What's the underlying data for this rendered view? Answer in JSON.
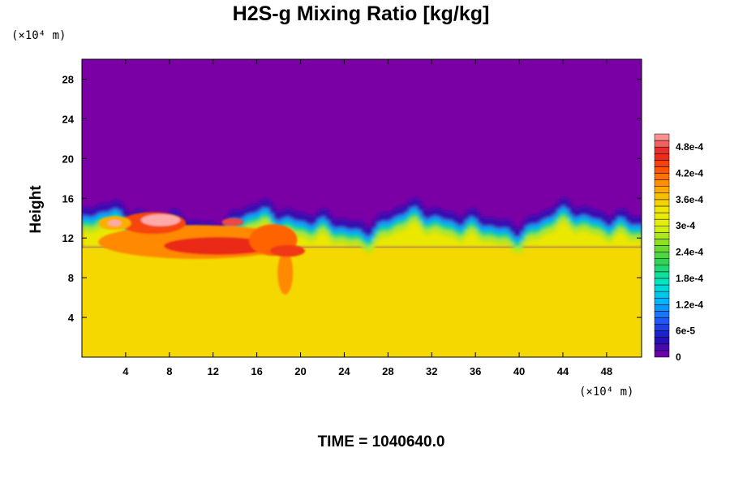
{
  "chart_data": {
    "type": "heatmap",
    "title": "H2S-g Mixing Ratio [kg/kg]",
    "ylabel": "Height",
    "x_unit": "(×10⁴ m)",
    "y_unit": "(×10⁴ m)",
    "xlim": [
      0,
      51.2
    ],
    "ylim": [
      0,
      30
    ],
    "x_ticks": [
      4,
      8,
      12,
      16,
      20,
      24,
      28,
      32,
      36,
      40,
      44,
      48
    ],
    "y_ticks": [
      4,
      8,
      12,
      16,
      20,
      24,
      28
    ],
    "x_tick_labels": [
      "4",
      "8",
      "12",
      "16",
      "20",
      "24",
      "28",
      "32",
      "36",
      "40",
      "44",
      "48"
    ],
    "y_tick_labels": [
      "4",
      "8",
      "12",
      "16",
      "20",
      "24",
      "28"
    ],
    "colorbar": {
      "min": 0,
      "max": 0.00051,
      "labels": [
        "0",
        "6e-5",
        "1.2e-4",
        "1.8e-4",
        "2.4e-4",
        "3e-4",
        "3.6e-4",
        "4.2e-4",
        "4.8e-4"
      ],
      "label_values": [
        0,
        6e-05,
        0.00012,
        0.00018,
        0.00024,
        0.0003,
        0.00036,
        0.00042,
        0.00048
      ]
    },
    "field_summary": {
      "upper_layer_value": 0,
      "lower_layer_value": 0.00035,
      "interface_height": 11,
      "plume_peak_value": 0.00051
    },
    "colors": {
      "scale": [
        "#7a00a6",
        "#1e10b8",
        "#1e5cff",
        "#00b4ff",
        "#00e6c8",
        "#28d25a",
        "#78dc28",
        "#dcf014",
        "#f0e600",
        "#ffaa00",
        "#ff5a00",
        "#e61e1e",
        "#ffaaaa"
      ]
    },
    "time_label": "TIME = 1040640.0"
  }
}
